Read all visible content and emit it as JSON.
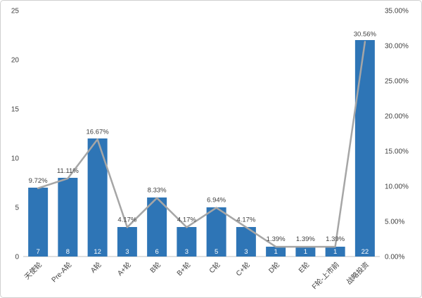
{
  "chart_data": {
    "type": "bar",
    "subtype": "bar-with-line-overlay",
    "title": "",
    "xlabel": "",
    "ylabel": "",
    "grid": false,
    "legend": "none",
    "categories": [
      "天使轮",
      "Pre-A轮",
      "A轮",
      "A+轮",
      "B轮",
      "B+轮",
      "C轮",
      "C+轮",
      "D轮",
      "E轮",
      "F轮-上市前",
      "战略投资"
    ],
    "series": [
      {
        "name": "count-bars",
        "type": "bar",
        "axis": "left",
        "color": "#2E75B6",
        "values": [
          7,
          8,
          12,
          3,
          6,
          3,
          5,
          3,
          1,
          1,
          1,
          22
        ],
        "value_labels": [
          "7",
          "8",
          "12",
          "3",
          "6",
          "3",
          "5",
          "3",
          "1",
          "1",
          "1",
          "22"
        ],
        "value_label_color": "#FFFFFF"
      },
      {
        "name": "percentage-line",
        "type": "line",
        "axis": "right",
        "color": "#A6A6A6",
        "values": [
          9.72,
          11.11,
          16.67,
          4.17,
          8.33,
          4.17,
          6.94,
          4.17,
          1.39,
          1.39,
          1.39,
          30.56
        ],
        "value_labels": [
          "9.72%",
          "11.11%",
          "16.67%",
          "4.17%",
          "8.33%",
          "4.17%",
          "6.94%",
          "4.17%",
          "1.39%",
          "1.39%",
          "1.39%",
          "30.56%"
        ],
        "value_label_color": "#404040"
      }
    ],
    "left_axis": {
      "min": 0,
      "max": 25,
      "tick_values": [
        0,
        5,
        10,
        15,
        20,
        25
      ],
      "tick_labels": [
        "0",
        "5",
        "10",
        "15",
        "20",
        "25"
      ]
    },
    "right_axis": {
      "min": 0,
      "max": 35,
      "tick_values": [
        0,
        5,
        10,
        15,
        20,
        25,
        30,
        35
      ],
      "tick_labels": [
        "0.00%",
        "5.00%",
        "10.00%",
        "15.00%",
        "20.00%",
        "25.00%",
        "30.00%",
        "35.00%"
      ]
    },
    "axis_line_color": "#BFBFBF",
    "tick_label_color": "#404040"
  }
}
